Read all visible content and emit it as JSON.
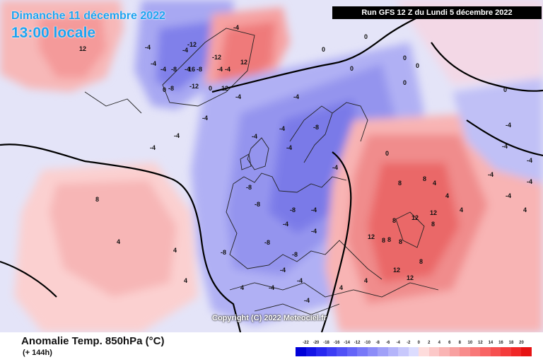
{
  "header": {
    "date": "Dimanche 11 décembre 2022",
    "time": "13:00 locale",
    "run": "Run GFS 12 Z du Lundi 5 décembre 2022"
  },
  "watermark": "Copyright (C) 2022 Meteociel.fr",
  "field": {
    "title": "Anomalie Temp. 850hPa (°C)",
    "subtitle": "(+ 144h)"
  },
  "legend": {
    "ticks": [
      "-22",
      "-20",
      "-18",
      "-16",
      "-14",
      "-12",
      "-10",
      "-8",
      "-6",
      "-4",
      "-2",
      "0",
      "2",
      "4",
      "6",
      "8",
      "10",
      "12",
      "14",
      "16",
      "18",
      "20"
    ],
    "colors": [
      "#0000d8",
      "#1414e6",
      "#2828f0",
      "#3c3cf4",
      "#5050f6",
      "#6464f8",
      "#7878f8",
      "#8c8cf8",
      "#a0a0f8",
      "#b4b4fa",
      "#c8c8fc",
      "#dcdcfe",
      "#fedcdc",
      "#fcc8c8",
      "#fab4b4",
      "#f8a0a0",
      "#f88c8c",
      "#f87878",
      "#f86464",
      "#f65050",
      "#f43c3c",
      "#f02828",
      "#e61414"
    ]
  },
  "map_labels": [
    "12",
    "-4",
    "-4",
    "-4",
    "-4",
    "-8",
    "-4",
    "-8",
    "-12",
    "16",
    "-8",
    "-12",
    "-12",
    "-4",
    "-4",
    "12",
    "12",
    "0",
    "-4",
    "-4",
    "-4",
    "-4",
    "-4",
    "-4",
    "-4",
    "0",
    "0",
    "0",
    "0",
    "0",
    "0",
    "0",
    "-4",
    "-4",
    "-4",
    "-4",
    "-4",
    "-8",
    "-8",
    "-8",
    "-8",
    "-8",
    "-8",
    "-8",
    "-4",
    "-4",
    "-4",
    "-4",
    "-4",
    "8",
    "8",
    "8",
    "12",
    "12",
    "12",
    "8",
    "8",
    "8",
    "8",
    "8",
    "12",
    "8",
    "12",
    "4",
    "4",
    "4",
    "4",
    "4",
    "4",
    "0",
    "0",
    "-4",
    "-4",
    "-4",
    "-4",
    "4",
    "4",
    "4",
    "-4",
    "-4",
    "4"
  ]
}
